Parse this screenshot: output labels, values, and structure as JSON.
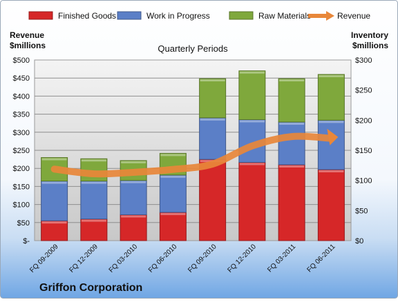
{
  "company": "Griffon Corporation",
  "chart_data": {
    "type": "bar",
    "stacked": true,
    "subtitle": "Quarterly Periods",
    "left_axis_label_line1": "Revenue",
    "left_axis_label_line2": "$millions",
    "right_axis_label_line1": "Inventory",
    "right_axis_label_line2": "$millions",
    "categories": [
      "FQ 09-2009",
      "FQ 12-2009",
      "FQ 03-2010",
      "FQ 06-2010",
      "FQ 09-2010",
      "FQ 12-2010",
      "FQ 03-2011",
      "FQ 06-2011"
    ],
    "left_ticks": [
      "$-",
      "$50",
      "$100",
      "$150",
      "$200",
      "$250",
      "$300",
      "$350",
      "$400",
      "$450",
      "$500"
    ],
    "right_ticks": [
      "$0",
      "$50",
      "$100",
      "$150",
      "$200",
      "$250",
      "$300"
    ],
    "left_ylim": [
      0,
      500
    ],
    "right_ylim": [
      0,
      300
    ],
    "grid": true,
    "legend_position": "top",
    "series": [
      {
        "name": "Finished Goods",
        "axis": "right",
        "kind": "bar",
        "color": "#d62728",
        "values": [
          33,
          36,
          43,
          47,
          135,
          130,
          126,
          118
        ]
      },
      {
        "name": "Work in Progress",
        "axis": "right",
        "kind": "bar",
        "color": "#5b7fc7",
        "values": [
          66,
          63,
          57,
          62,
          69,
          71,
          71,
          82
        ]
      },
      {
        "name": "Raw Materials",
        "axis": "right",
        "kind": "bar",
        "color": "#7fa83c",
        "values": [
          39,
          37,
          33,
          36,
          65,
          81,
          72,
          76
        ]
      },
      {
        "name": "Revenue",
        "axis": "left",
        "kind": "line",
        "color": "#e8873a",
        "values": [
          198,
          185,
          189,
          197,
          212,
          262,
          288,
          283
        ]
      }
    ]
  }
}
